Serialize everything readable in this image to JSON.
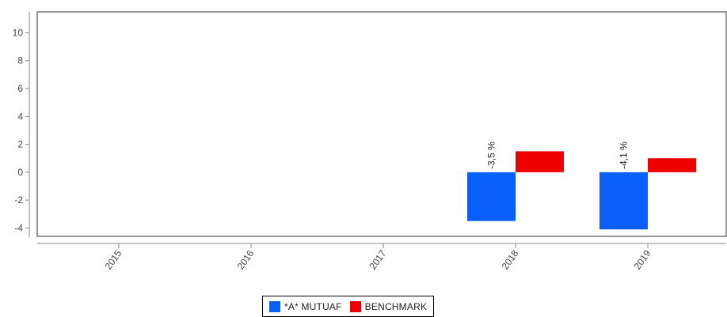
{
  "chart_data": {
    "type": "bar",
    "categories": [
      "2015",
      "2016",
      "2017",
      "2018",
      "2019"
    ],
    "series": [
      {
        "name": "*A* MUTUAF",
        "color": "#0a5ffb",
        "values": [
          null,
          null,
          null,
          -3.5,
          -4.1
        ]
      },
      {
        "name": "BENCHMARK",
        "color": "#ee0000",
        "values": [
          null,
          null,
          null,
          1.5,
          1.0
        ]
      }
    ],
    "data_labels": [
      {
        "category": "2018",
        "series": "*A* MUTUAF",
        "text": "-3,5 %"
      },
      {
        "category": "2019",
        "series": "*A* MUTUAF",
        "text": "-4,1 %"
      }
    ],
    "y_ticks": [
      10,
      8,
      6,
      4,
      2,
      0,
      -2,
      -4
    ],
    "ylim": [
      -4.6,
      11.5
    ],
    "title": "",
    "xlabel": "",
    "ylabel": "",
    "legend_position": "bottom",
    "grid": false
  }
}
